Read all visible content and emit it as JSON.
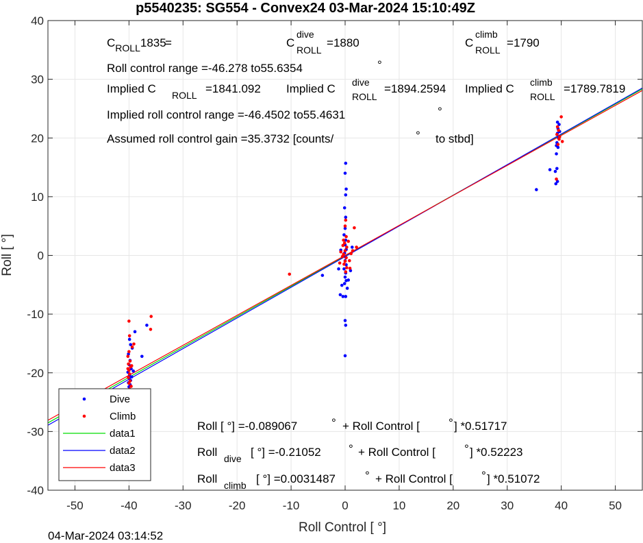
{
  "chart_data": {
    "type": "scatter",
    "title": "p5540235: SG554 - Convex24 03-Mar-2024 15:10:49Z",
    "xlabel": "Roll Control [   °]",
    "ylabel": "Roll [   °]",
    "xlim": [
      -55,
      55
    ],
    "ylim": [
      -40,
      40
    ],
    "xticks": [
      -50,
      -40,
      -30,
      -20,
      -10,
      0,
      10,
      20,
      30,
      40,
      50
    ],
    "yticks": [
      -40,
      -30,
      -20,
      -10,
      0,
      10,
      20,
      30,
      40
    ],
    "grid": true,
    "legend_position": "bottom-left",
    "legend": [
      "Dive",
      "Climb",
      "data1",
      "data2",
      "data3"
    ],
    "series": [
      {
        "name": "Dive",
        "kind": "points",
        "color": "#0000ff",
        "points": [
          [
            -48.2,
            -24.6
          ],
          [
            -39.9,
            -14.3
          ],
          [
            -39.7,
            -15.2
          ],
          [
            -40.1,
            -16.8
          ],
          [
            -39.8,
            -17.9
          ],
          [
            -40.0,
            -18.6
          ],
          [
            -39.6,
            -19.3
          ],
          [
            -40.2,
            -19.9
          ],
          [
            -39.9,
            -20.4
          ],
          [
            -40.0,
            -20.9
          ],
          [
            -39.7,
            -21.3
          ],
          [
            -40.1,
            -21.7
          ],
          [
            -39.8,
            -22.0
          ],
          [
            -40.0,
            -22.4
          ],
          [
            -39.9,
            -22.9
          ],
          [
            -40.3,
            -23.4
          ],
          [
            -39.5,
            -20.7
          ],
          [
            -39.2,
            -19.7
          ],
          [
            -38.9,
            -13.0
          ],
          [
            -37.6,
            -17.2
          ],
          [
            -36.7,
            -11.9
          ],
          [
            -39.4,
            -15.8
          ],
          [
            -40.0,
            -23.8
          ],
          [
            -4.2,
            -3.4
          ],
          [
            0.1,
            15.7
          ],
          [
            0.0,
            14.0
          ],
          [
            0.2,
            11.3
          ],
          [
            0.1,
            10.3
          ],
          [
            -0.1,
            8.1
          ],
          [
            0.1,
            6.5
          ],
          [
            0.0,
            4.6
          ],
          [
            -0.2,
            3.5
          ],
          [
            0.1,
            2.6
          ],
          [
            0.0,
            1.8
          ],
          [
            0.2,
            1.0
          ],
          [
            -0.1,
            0.4
          ],
          [
            0.1,
            -0.3
          ],
          [
            0.0,
            -0.9
          ],
          [
            0.2,
            -1.6
          ],
          [
            -0.2,
            -2.3
          ],
          [
            0.1,
            -3.0
          ],
          [
            0.0,
            -3.7
          ],
          [
            0.2,
            -4.3
          ],
          [
            -0.1,
            -4.8
          ],
          [
            -0.6,
            -5.1
          ],
          [
            -0.9,
            -6.7
          ],
          [
            -0.4,
            -7.0
          ],
          [
            0.1,
            -7.0
          ],
          [
            0.0,
            -11.1
          ],
          [
            0.1,
            -11.9
          ],
          [
            0.0,
            -17.1
          ],
          [
            0.6,
            -4.2
          ],
          [
            1.0,
            -2.6
          ],
          [
            1.3,
            1.4
          ],
          [
            -1.2,
            -2.3
          ],
          [
            -0.8,
            0.9
          ],
          [
            0.4,
            -5.6
          ],
          [
            35.4,
            11.2
          ],
          [
            37.9,
            14.6
          ],
          [
            38.9,
            14.3
          ],
          [
            39.2,
            14.8
          ],
          [
            39.0,
            12.2
          ],
          [
            39.3,
            12.6
          ],
          [
            39.1,
            17.3
          ],
          [
            39.4,
            18.4
          ],
          [
            39.2,
            19.2
          ],
          [
            39.5,
            20.0
          ],
          [
            39.3,
            20.8
          ],
          [
            39.4,
            21.6
          ],
          [
            39.6,
            22.3
          ],
          [
            39.3,
            22.7
          ],
          [
            39.1,
            18.7
          ],
          [
            39.7,
            21.1
          ]
        ]
      },
      {
        "name": "Climb",
        "kind": "points",
        "color": "#ff0000",
        "points": [
          [
            -40.0,
            -11.2
          ],
          [
            -35.9,
            -10.4
          ],
          [
            -36.0,
            -12.6
          ],
          [
            -39.9,
            -13.7
          ],
          [
            -39.4,
            -15.6
          ],
          [
            -39.1,
            -15.1
          ],
          [
            -40.0,
            -16.4
          ],
          [
            -40.2,
            -17.2
          ],
          [
            -39.8,
            -18.0
          ],
          [
            -40.1,
            -18.5
          ],
          [
            -39.7,
            -19.0
          ],
          [
            -40.0,
            -19.6
          ],
          [
            -39.9,
            -20.2
          ],
          [
            -40.1,
            -20.8
          ],
          [
            -39.8,
            -21.4
          ],
          [
            -40.0,
            -21.8
          ],
          [
            -39.6,
            -22.3
          ],
          [
            -39.9,
            -22.8
          ],
          [
            -40.2,
            -19.3
          ],
          [
            -39.5,
            -18.8
          ],
          [
            -10.3,
            -3.2
          ],
          [
            -0.3,
            2.6
          ],
          [
            0.2,
            3.2
          ],
          [
            0.0,
            5.0
          ],
          [
            0.1,
            6.0
          ],
          [
            -0.1,
            2.1
          ],
          [
            0.3,
            1.4
          ],
          [
            0.0,
            0.8
          ],
          [
            -0.3,
            0.2
          ],
          [
            0.2,
            -0.4
          ],
          [
            0.0,
            -1.0
          ],
          [
            -0.2,
            -1.5
          ],
          [
            0.3,
            -2.1
          ],
          [
            0.1,
            -2.8
          ],
          [
            -0.5,
            -0.2
          ],
          [
            -0.8,
            0.6
          ],
          [
            -1.0,
            -1.3
          ],
          [
            0.8,
            -0.9
          ],
          [
            1.1,
            0.3
          ],
          [
            1.4,
            0.8
          ],
          [
            1.7,
            4.7
          ],
          [
            -0.4,
            1.7
          ],
          [
            0.6,
            2.4
          ],
          [
            2.1,
            1.4
          ],
          [
            0.9,
            -2.2
          ],
          [
            39.1,
            13.0
          ],
          [
            39.4,
            18.9
          ],
          [
            39.6,
            19.8
          ],
          [
            39.2,
            20.6
          ],
          [
            39.5,
            21.3
          ],
          [
            39.3,
            21.9
          ],
          [
            39.7,
            20.2
          ],
          [
            40.2,
            19.4
          ],
          [
            40.0,
            23.6
          ]
        ]
      },
      {
        "name": "data1",
        "kind": "line",
        "color": "#00dd00",
        "intercept": -0.089067,
        "slope": 0.51717
      },
      {
        "name": "data2",
        "kind": "line",
        "color": "#0000ff",
        "intercept": -0.21052,
        "slope": 0.52223
      },
      {
        "name": "data3",
        "kind": "line",
        "color": "#ff0000",
        "intercept": 0.0031487,
        "slope": 0.51072
      }
    ],
    "annotations": {
      "c_roll": "1835",
      "c_roll_dive": "1880",
      "c_roll_climb": "1790",
      "roll_control_range": "Roll control range =-46.278 to55.6354",
      "implied_c_roll": "=1841.092",
      "implied_c_roll_dive": "=1894.2594",
      "implied_c_roll_climb": "=1789.7819",
      "implied_range": "Implied roll control range =-46.4502 to55.4631",
      "gain": "Assumed roll control gain =35.3732 [counts/",
      "gain_tail": "to stbd]",
      "fit_all_a": "Roll [  °] =-0.089067",
      "fit_all_b": "+ Roll Control [",
      "fit_all_c": "] *0.51717",
      "fit_dive_b": "[  °] =-0.21052",
      "fit_dive_c": "+ Roll Control [",
      "fit_dive_d": "] *0.52223",
      "fit_climb_b": "[  °] =0.0031487",
      "fit_climb_c": "+ Roll Control [",
      "fit_climb_d": "] *0.51072"
    }
  },
  "labels": {
    "C": "C",
    "ROLL": "ROLL",
    "dive": "dive",
    "climb": "climb",
    "implied": "Implied C",
    "roll_word": "Roll",
    "degree": "°",
    "timestamp": "04-Mar-2024 03:14:52"
  }
}
